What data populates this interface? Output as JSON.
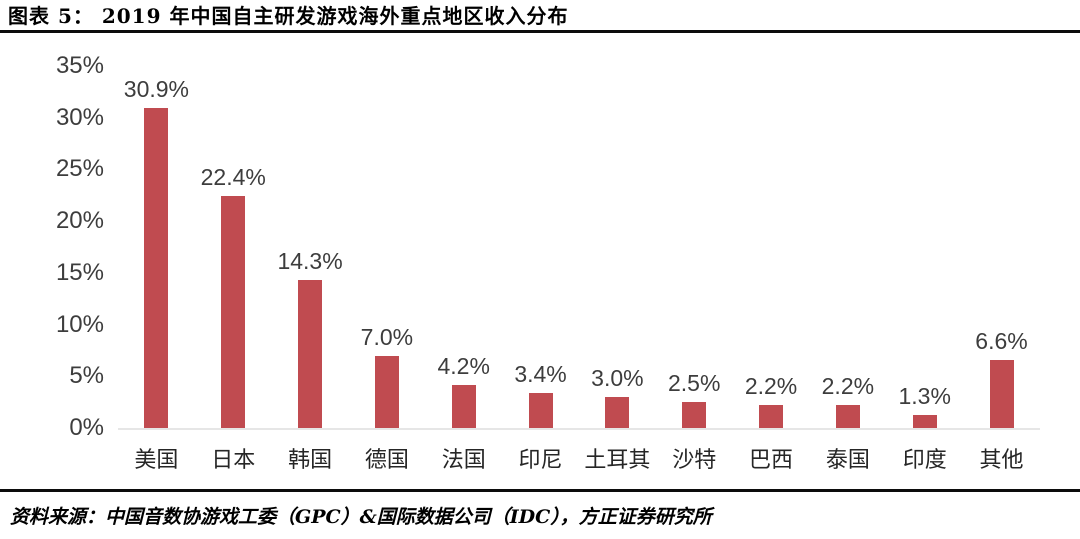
{
  "header": {
    "figure_label": "图表 5",
    "title": "图表 5：  2019 年中国自主研发游戏海外重点地区收入分布"
  },
  "chart_data": {
    "type": "bar",
    "title": "2019 年中国自主研发游戏海外重点地区收入分布",
    "categories": [
      "美国",
      "日本",
      "韩国",
      "德国",
      "法国",
      "印尼",
      "土耳其",
      "沙特",
      "巴西",
      "泰国",
      "印度",
      "其他"
    ],
    "values": [
      30.9,
      22.4,
      14.3,
      7.0,
      4.2,
      3.4,
      3.0,
      2.5,
      2.2,
      2.2,
      1.3,
      6.6
    ],
    "data_labels": [
      "30.9%",
      "22.4%",
      "14.3%",
      "7.0%",
      "4.2%",
      "3.4%",
      "3.0%",
      "2.5%",
      "2.2%",
      "2.2%",
      "1.3%",
      "6.6%"
    ],
    "xlabel": "",
    "ylabel": "",
    "ylim": [
      0,
      35
    ],
    "y_ticks": [
      "0%",
      "5%",
      "10%",
      "15%",
      "20%",
      "25%",
      "30%",
      "35%"
    ],
    "grid": false,
    "legend": false,
    "bar_color": "#c04b50",
    "baseline_color": "#e6e6e6"
  },
  "footer": {
    "source": "资料来源：中国音数协游戏工委（GPC）&国际数据公司（IDC），方正证券研究所"
  },
  "colors": {
    "bar": "#c04b50",
    "axis_text": "#3d3d3d",
    "category_text": "#262626",
    "rule": "#0c0c0c",
    "baseline": "#e6e6e6",
    "background": "#ffffff"
  }
}
